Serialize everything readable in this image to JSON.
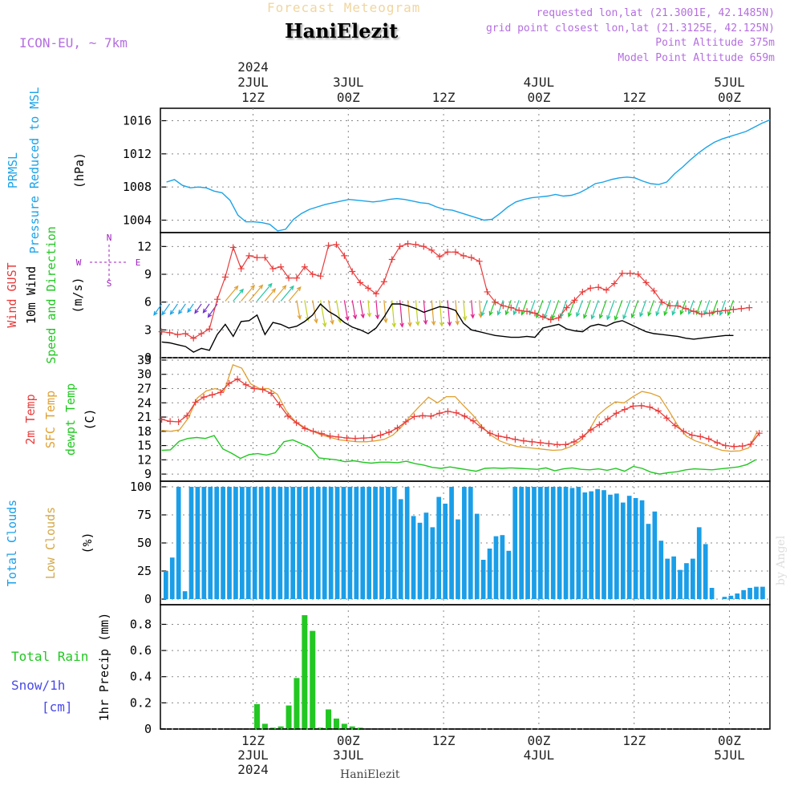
{
  "header": {
    "title": "Forecast Meteogram",
    "station": "HaniElezit",
    "model": "ICON-EU, ~ 7km",
    "requested": "requested lon,lat (21.3001E, 42.1485N)",
    "grid_point": "grid point closest lon,lat (21.3125E, 42.125N)",
    "point_altitude": "Point Altitude 375m",
    "model_altitude": "Model Point Altitude 659m",
    "footer": "HaniElezit",
    "watermark": "by Angel"
  },
  "colors": {
    "pressure": "#1aa3e8",
    "gust": "#e83c3c",
    "wind": "#000000",
    "temp2m": "#e83c3c",
    "sfc": "#e0a030",
    "dewpt": "#22c722",
    "total_clouds": "#1a9ee8",
    "low_clouds": "#d4a84a",
    "rain": "#22c722",
    "snow": "#4a4ae8",
    "arrow_cb_purple": "#a020c0",
    "arrow_magenta": "#e0208c",
    "grid": "#888888"
  },
  "time_axis": {
    "top": [
      {
        "hour": 15,
        "lines": [
          "2024",
          "2JUL",
          "12Z"
        ]
      },
      {
        "hour": 27,
        "lines": [
          "3JUL",
          "00Z"
        ]
      },
      {
        "hour": 39,
        "lines": [
          "12Z"
        ]
      },
      {
        "hour": 51,
        "lines": [
          "4JUL",
          "00Z"
        ]
      },
      {
        "hour": 63,
        "lines": [
          "12Z"
        ]
      },
      {
        "hour": 75,
        "lines": [
          "5JUL",
          "00Z"
        ]
      }
    ],
    "bottom": [
      {
        "hour": 15,
        "lines": [
          "12Z",
          "2JUL",
          "2024"
        ]
      },
      {
        "hour": 27,
        "lines": [
          "00Z",
          "3JUL"
        ]
      },
      {
        "hour": 39,
        "lines": [
          "12Z"
        ]
      },
      {
        "hour": 51,
        "lines": [
          "00Z",
          "4JUL"
        ]
      },
      {
        "hour": 63,
        "lines": [
          "12Z"
        ]
      },
      {
        "hour": 75,
        "lines": [
          "00Z",
          "5JUL"
        ]
      }
    ]
  },
  "chart_data": [
    {
      "type": "line",
      "panel": "pressure",
      "ylabel_lines": [
        {
          "text": "PRMSL",
          "color": "#1aa3e8"
        },
        {
          "text": "Pressure Reduced to MSL",
          "color": "#1aa3e8"
        },
        {
          "text": "(hPa)",
          "color": "#000000"
        }
      ],
      "yticks": [
        1004,
        1008,
        1012,
        1016
      ],
      "ylim": [
        1002.5,
        1017.5
      ],
      "series": [
        {
          "values": [
            1008.6,
            1008.9,
            1008.2,
            1007.9,
            1008.0,
            1007.9,
            1007.5,
            1007.3,
            1006.4,
            1004.6,
            1003.8,
            1003.8,
            1003.7,
            1003.5,
            1002.7,
            1002.9,
            1004.1,
            1004.8,
            1005.3,
            1005.6,
            1005.9,
            1006.1,
            1006.3,
            1006.5,
            1006.4,
            1006.3,
            1006.2,
            1006.3,
            1006.5,
            1006.6,
            1006.5,
            1006.3,
            1006.1,
            1006.0,
            1005.6,
            1005.3,
            1005.2,
            1004.9,
            1004.6,
            1004.3,
            1004.0,
            1004.1,
            1004.8,
            1005.6,
            1006.2,
            1006.5,
            1006.7,
            1006.8,
            1006.9,
            1007.1,
            1006.9,
            1007.0,
            1007.3,
            1007.8,
            1008.4,
            1008.6,
            1008.9,
            1009.1,
            1009.2,
            1009.1,
            1008.7,
            1008.4,
            1008.3,
            1008.6,
            1009.6,
            1010.4,
            1011.3,
            1012.1,
            1012.8,
            1013.4,
            1013.8,
            1014.1,
            1014.4,
            1014.7,
            1015.2,
            1015.7,
            1016.1
          ]
        }
      ]
    },
    {
      "type": "line",
      "panel": "wind",
      "ylabel_lines": [
        {
          "text": "Wind GUST",
          "color": "#e83c3c"
        },
        {
          "text": "10m Wind",
          "color": "#000000"
        },
        {
          "text": "Speed and Direction",
          "color": "#22c722"
        },
        {
          "text": "(m/s)",
          "color": "#000000"
        }
      ],
      "compass": {
        "n": "N",
        "s": "S",
        "w": "W",
        "e": "E"
      },
      "yticks": [
        0,
        3,
        6,
        9,
        12
      ],
      "ylim": [
        0,
        13.5
      ],
      "series": [
        {
          "name": "Wind GUST",
          "marker": "+",
          "values": [
            2.8,
            2.7,
            2.5,
            2.6,
            2.1,
            2.6,
            3.1,
            6.3,
            8.7,
            11.9,
            9.6,
            11.0,
            10.8,
            10.8,
            9.6,
            9.8,
            8.6,
            8.6,
            9.8,
            9.0,
            8.8,
            12.1,
            12.2,
            11.0,
            9.3,
            8.1,
            7.5,
            6.9,
            8.2,
            10.6,
            12.0,
            12.3,
            12.2,
            12.0,
            11.6,
            10.9,
            11.4,
            11.4,
            11.0,
            10.8,
            10.4,
            7.1,
            6.0,
            5.6,
            5.4,
            5.1,
            5.0,
            4.8,
            4.4,
            4.1,
            4.3,
            5.4,
            6.2,
            7.1,
            7.5,
            7.6,
            7.3,
            8.0,
            9.1,
            9.1,
            9.0,
            8.1,
            7.2,
            6.0,
            5.6,
            5.6,
            5.3,
            5.0,
            4.7,
            4.8,
            5.0,
            5.1,
            5.2,
            5.3,
            5.4
          ]
        },
        {
          "name": "10m Wind",
          "values": [
            1.7,
            1.6,
            1.4,
            1.2,
            0.6,
            1.0,
            0.8,
            2.5,
            3.6,
            2.3,
            3.9,
            4.0,
            4.6,
            2.5,
            3.8,
            3.6,
            3.2,
            3.4,
            3.9,
            4.6,
            5.8,
            5.0,
            4.5,
            3.8,
            3.3,
            3.0,
            2.6,
            3.2,
            4.4,
            5.8,
            5.8,
            5.6,
            5.3,
            4.9,
            5.2,
            5.5,
            5.4,
            5.1,
            3.7,
            3.0,
            2.8,
            2.6,
            2.4,
            2.3,
            2.2,
            2.2,
            2.3,
            2.2,
            3.2,
            3.4,
            3.6,
            3.1,
            2.9,
            2.8,
            3.4,
            3.6,
            3.4,
            3.8,
            4.0,
            3.6,
            3.2,
            2.8,
            2.6,
            2.5,
            2.4,
            2.3,
            2.1,
            2.0,
            2.1,
            2.2,
            2.3,
            2.4,
            2.4
          ]
        }
      ]
    },
    {
      "type": "line",
      "panel": "temperature",
      "ylabel_lines": [
        {
          "text": "2m Temp",
          "color": "#e83c3c"
        },
        {
          "text": "SFC Temp",
          "color": "#e0a030"
        },
        {
          "text": "dewpt Temp",
          "color": "#22c722"
        },
        {
          "text": "(C)",
          "color": "#000000"
        }
      ],
      "yticks": [
        9,
        12,
        15,
        18,
        21,
        24,
        27,
        30,
        33
      ],
      "ylim": [
        7.5,
        33.5
      ],
      "series": [
        {
          "name": "2m Temp",
          "marker": "+",
          "values": [
            20.5,
            20.1,
            20.0,
            21.3,
            24.1,
            25.2,
            25.7,
            26.2,
            28.1,
            29.0,
            27.8,
            27.0,
            26.8,
            26.0,
            23.6,
            21.2,
            19.8,
            18.6,
            18.0,
            17.5,
            17.0,
            16.8,
            16.6,
            16.5,
            16.6,
            16.7,
            17.2,
            17.8,
            18.7,
            20.0,
            21.1,
            21.3,
            21.2,
            21.8,
            22.2,
            21.9,
            21.2,
            20.2,
            18.8,
            17.6,
            17.0,
            16.7,
            16.3,
            16.0,
            15.8,
            15.6,
            15.4,
            15.2,
            15.2,
            15.8,
            16.9,
            18.3,
            19.4,
            20.6,
            21.8,
            22.6,
            23.3,
            23.4,
            23.1,
            22.3,
            20.8,
            19.2,
            18.0,
            17.2,
            16.9,
            16.4,
            15.6,
            15.0,
            14.8,
            14.9,
            15.3,
            17.6
          ]
        },
        {
          "name": "SFC Temp",
          "values": [
            18.2,
            18.0,
            18.3,
            20.8,
            25.0,
            26.5,
            27.0,
            26.4,
            32.0,
            31.3,
            28.0,
            27.0,
            27.0,
            25.8,
            22.3,
            20.1,
            18.9,
            18.0,
            17.2,
            16.7,
            16.2,
            16.0,
            15.8,
            15.8,
            16.0,
            16.3,
            17.2,
            19.0,
            21.3,
            23.3,
            25.2,
            24.0,
            25.3,
            25.3,
            23.3,
            21.4,
            19.0,
            17.2,
            16.0,
            15.3,
            14.8,
            14.6,
            14.4,
            14.2,
            14.0,
            14.1,
            14.8,
            15.9,
            18.0,
            21.3,
            22.9,
            24.2,
            24.0,
            25.3,
            26.4,
            26.0,
            25.3,
            22.4,
            19.3,
            17.0,
            16.0,
            15.4,
            14.6,
            14.0,
            13.8,
            13.9,
            14.5,
            18.0
          ]
        },
        {
          "name": "dewpt Temp",
          "values": [
            14.0,
            14.1,
            15.9,
            16.5,
            16.7,
            16.5,
            17.1,
            14.3,
            13.4,
            12.3,
            13.1,
            13.3,
            13.0,
            13.5,
            15.8,
            16.2,
            15.4,
            14.6,
            12.4,
            12.2,
            12.0,
            11.6,
            11.8,
            11.5,
            11.3,
            11.5,
            11.5,
            11.4,
            11.7,
            11.2,
            10.9,
            10.4,
            10.2,
            10.5,
            10.2,
            9.9,
            9.6,
            10.2,
            10.3,
            10.2,
            10.3,
            10.2,
            10.1,
            10.0,
            10.3,
            9.7,
            10.1,
            10.3,
            10.0,
            9.9,
            10.1,
            9.8,
            10.2,
            9.6,
            10.6,
            10.2,
            9.4,
            9.0,
            9.3,
            9.5,
            9.9,
            10.1,
            10.0,
            9.9,
            10.1,
            10.3,
            10.5,
            11.0,
            12.0
          ]
        }
      ]
    },
    {
      "type": "bar",
      "panel": "clouds",
      "ylabel_lines": [
        {
          "text": "Total Clouds",
          "color": "#1a9ee8"
        },
        {
          "text": "Low Clouds",
          "color": "#d4a84a"
        },
        {
          "text": "(%)",
          "color": "#000000"
        }
      ],
      "yticks": [
        0,
        25,
        50,
        75,
        100
      ],
      "ylim": [
        -5,
        105
      ],
      "series": [
        {
          "name": "Total Clouds",
          "values": [
            25,
            37,
            100,
            7,
            100,
            100,
            100,
            100,
            100,
            100,
            100,
            100,
            100,
            100,
            100,
            100,
            100,
            100,
            100,
            100,
            100,
            100,
            100,
            100,
            100,
            100,
            100,
            100,
            100,
            100,
            100,
            100,
            100,
            100,
            100,
            100,
            100,
            89,
            100,
            74,
            68,
            77,
            64,
            91,
            85,
            100,
            71,
            100,
            100,
            76,
            35,
            45,
            56,
            57,
            43,
            100,
            100,
            100,
            100,
            100,
            100,
            100,
            100,
            100,
            99,
            100,
            95,
            96,
            98,
            97,
            93,
            94,
            86,
            92,
            90,
            88,
            67,
            78,
            52,
            36,
            38,
            26,
            32,
            36,
            64,
            49,
            10,
            0,
            2,
            3,
            5,
            8,
            10,
            11,
            11
          ]
        },
        {
          "name": "Low Clouds",
          "values": [
            0,
            0,
            0,
            0,
            0,
            0,
            0,
            0,
            0,
            0,
            0,
            0,
            0,
            0,
            0,
            0,
            0,
            0,
            0,
            0,
            0,
            0,
            0,
            0,
            0,
            0,
            0,
            0,
            0,
            0,
            0,
            0,
            0,
            0,
            0,
            0,
            0,
            0,
            0,
            0,
            0,
            0,
            0,
            0,
            0,
            0,
            0,
            0,
            0,
            0,
            0,
            0,
            0,
            0,
            0,
            0,
            0,
            0,
            0,
            0,
            0,
            0,
            0,
            0,
            0,
            0,
            0,
            0,
            0,
            0,
            0,
            0,
            0,
            0,
            0,
            0,
            0,
            0,
            0,
            0,
            0,
            0,
            0,
            0,
            0,
            0,
            0,
            0,
            0,
            0,
            0,
            0,
            0,
            0,
            0
          ]
        }
      ]
    },
    {
      "type": "bar",
      "panel": "precip",
      "ylabel_lines": [
        {
          "text": "1hr Precip (mm)",
          "color": "#000000"
        }
      ],
      "legend": [
        {
          "text": "Total  Rain",
          "color": "#22c722"
        },
        {
          "text": "Snow/1h",
          "color": "#4a4ae8"
        },
        {
          "text": "[cm]",
          "color": "#4a4ae8"
        }
      ],
      "yticks": [
        "0",
        "0.2",
        "0.4",
        "0.6",
        "0.8"
      ],
      "ylim": [
        0,
        0.95
      ],
      "series": [
        {
          "name": "Total Rain",
          "values": [
            0,
            0,
            0,
            0,
            0,
            0,
            0,
            0,
            0,
            0,
            0,
            0,
            0.19,
            0.04,
            0.01,
            0.02,
            0.18,
            0.39,
            0.87,
            0.75,
            0.01,
            0.15,
            0.08,
            0.04,
            0.02,
            0.01,
            0,
            0,
            0,
            0,
            0,
            0,
            0,
            0,
            0,
            0,
            0,
            0,
            0,
            0,
            0,
            0,
            0,
            0,
            0,
            0,
            0,
            0,
            0,
            0,
            0,
            0,
            0,
            0,
            0,
            0,
            0,
            0,
            0,
            0,
            0,
            0,
            0,
            0,
            0,
            0,
            0,
            0,
            0,
            0,
            0,
            0,
            0,
            0,
            0,
            0
          ]
        }
      ]
    }
  ]
}
